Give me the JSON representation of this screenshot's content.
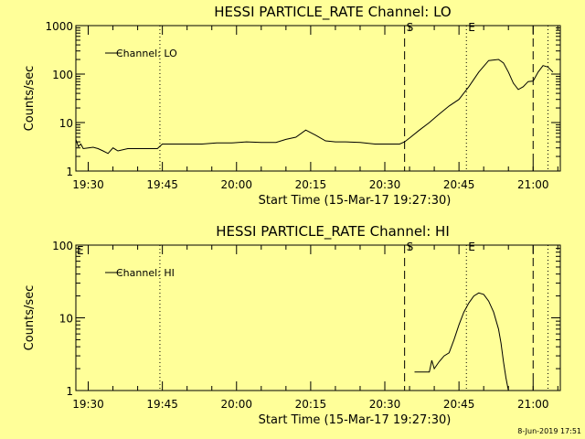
{
  "chart_data": [
    {
      "type": "line",
      "title": "HESSI PARTICLE_RATE Channel: LO",
      "xlabel": "Start Time (15-Mar-17 19:27:30)",
      "ylabel": "Counts/sec",
      "yscale": "log",
      "ylim": [
        1,
        1000
      ],
      "ytick_labels": [
        "1",
        "10",
        "100",
        "1000"
      ],
      "xlim": [
        "19:27:30",
        "21:05:30"
      ],
      "xtick_labels": [
        "19:30",
        "19:45",
        "20:00",
        "20:15",
        "20:30",
        "20:45",
        "21:00"
      ],
      "legend": "Channel: LO",
      "legend_position": "top-left",
      "markers": [
        {
          "time": "19:44:30",
          "style": "dotted",
          "label": ""
        },
        {
          "time": "20:34:00",
          "style": "dashed",
          "label": "S"
        },
        {
          "time": "20:46:30",
          "style": "dotted",
          "label": "E"
        },
        {
          "time": "21:00:00",
          "style": "dashed",
          "label": ""
        },
        {
          "time": "21:03:00",
          "style": "dotted",
          "label": ""
        }
      ],
      "series": [
        {
          "name": "Channel: LO",
          "x": [
            "19:27:30",
            "19:28:00",
            "19:28:30",
            "19:29:00",
            "19:30:00",
            "19:31:00",
            "19:32:00",
            "19:33:00",
            "19:34:00",
            "19:35:00",
            "19:36:00",
            "19:38:00",
            "19:40:00",
            "19:42:00",
            "19:44:00",
            "19:45:00",
            "19:47:00",
            "19:50:00",
            "19:53:00",
            "19:56:00",
            "19:59:00",
            "20:02:00",
            "20:05:00",
            "20:08:00",
            "20:10:00",
            "20:12:00",
            "20:14:00",
            "20:16:00",
            "20:18:00",
            "20:20:00",
            "20:22:00",
            "20:25:00",
            "20:28:00",
            "20:31:00",
            "20:33:00",
            "20:34:00",
            "20:35:00",
            "20:37:00",
            "20:39:00",
            "20:41:00",
            "20:43:00",
            "20:45:00",
            "20:47:00",
            "20:49:00",
            "20:51:00",
            "20:53:00",
            "20:54:00",
            "20:55:00",
            "20:56:00",
            "20:57:00",
            "20:58:00",
            "20:59:00",
            "21:00:00",
            "21:01:00",
            "21:02:00",
            "21:03:00",
            "21:04:00"
          ],
          "values": [
            4.5,
            3.2,
            3.6,
            2.9,
            3.0,
            3.1,
            2.9,
            2.6,
            2.3,
            3.0,
            2.6,
            2.9,
            2.9,
            2.9,
            2.9,
            3.6,
            3.6,
            3.6,
            3.6,
            3.8,
            3.8,
            4.0,
            3.9,
            3.9,
            4.5,
            5.0,
            7.0,
            5.5,
            4.2,
            4.0,
            4.0,
            3.9,
            3.6,
            3.6,
            3.6,
            4.0,
            4.8,
            7.0,
            10.0,
            15.0,
            22.0,
            30.0,
            55.0,
            110.0,
            190.0,
            200.0,
            170.0,
            110.0,
            65.0,
            48.0,
            55.0,
            70.0,
            72.0,
            110.0,
            150.0,
            140.0,
            110.0
          ]
        }
      ]
    },
    {
      "type": "line",
      "title": "HESSI PARTICLE_RATE Channel: HI",
      "xlabel": "Start Time (15-Mar-17 19:27:30)",
      "ylabel": "Counts/sec",
      "yscale": "log",
      "ylim": [
        1,
        100
      ],
      "ytick_labels": [
        "1",
        "10",
        "100"
      ],
      "xlim": [
        "19:27:30",
        "21:05:30"
      ],
      "xtick_labels": [
        "19:30",
        "19:45",
        "20:00",
        "20:15",
        "20:30",
        "20:45",
        "21:00"
      ],
      "legend": "Channel: HI",
      "legend_position": "top-left",
      "corner_label": "E",
      "markers": [
        {
          "time": "19:44:30",
          "style": "dotted",
          "label": ""
        },
        {
          "time": "20:34:00",
          "style": "dashed",
          "label": "S"
        },
        {
          "time": "20:46:30",
          "style": "dotted",
          "label": "E"
        },
        {
          "time": "21:00:00",
          "style": "dashed",
          "label": ""
        },
        {
          "time": "21:03:00",
          "style": "dotted",
          "label": ""
        }
      ],
      "series": [
        {
          "name": "Channel: HI",
          "x": [
            "20:36:00",
            "20:38:00",
            "20:39:00",
            "20:39:30",
            "20:40:00",
            "20:41:00",
            "20:42:00",
            "20:43:00",
            "20:44:00",
            "20:45:00",
            "20:46:00",
            "20:47:00",
            "20:48:00",
            "20:49:00",
            "20:50:00",
            "20:51:00",
            "20:52:00",
            "20:53:00",
            "20:53:30",
            "20:54:00",
            "20:54:30",
            "20:55:00"
          ],
          "values": [
            1.8,
            1.8,
            1.8,
            2.6,
            2.0,
            2.5,
            3.0,
            3.3,
            5.0,
            8.0,
            12.0,
            16.0,
            20.0,
            22.0,
            21.0,
            17.0,
            12.0,
            7.0,
            4.5,
            2.5,
            1.5,
            1.0
          ]
        }
      ]
    }
  ],
  "footer": "8-Jun-2019 17:51"
}
